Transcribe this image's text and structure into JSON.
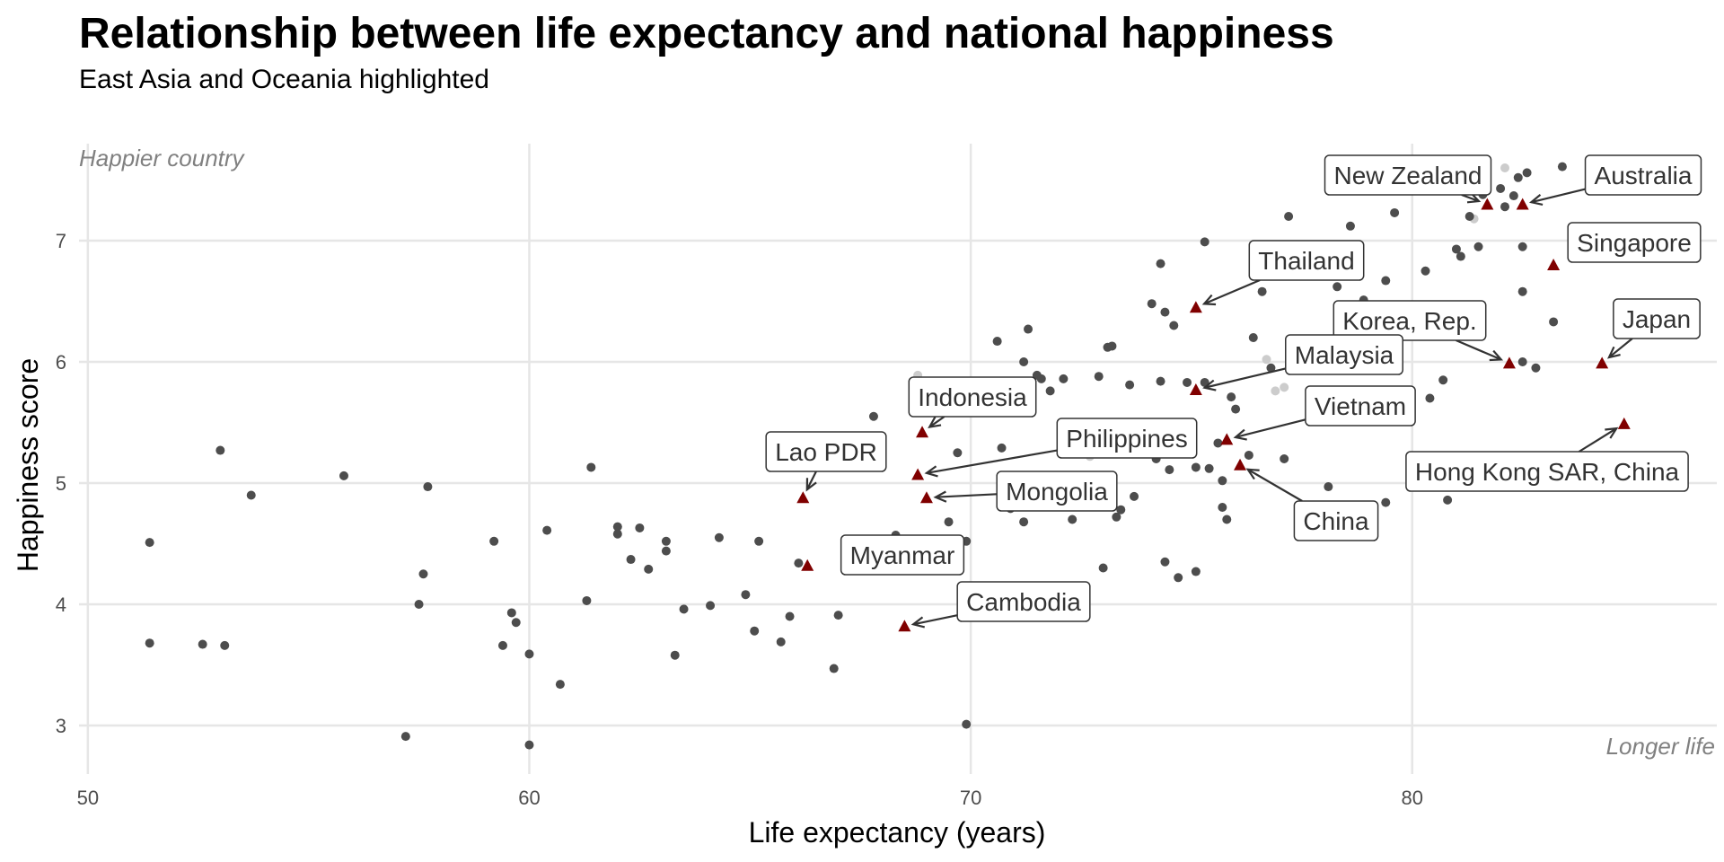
{
  "chart_data": {
    "type": "scatter",
    "title": "Relationship between life expectancy and national happiness",
    "subtitle": "East Asia and Oceania highlighted",
    "xlabel": "Life expectancy (years)",
    "ylabel": "Happiness score",
    "xlim": [
      49.8,
      86.9
    ],
    "ylim": [
      2.6,
      7.8
    ],
    "xticks": [
      50,
      60,
      70,
      80
    ],
    "yticks": [
      3,
      4,
      5,
      6,
      7
    ],
    "grid": true,
    "annotations": {
      "top_left": "Happier country",
      "bottom_right": "Longer life"
    },
    "colors": {
      "other_points": "#4d4d4d",
      "faded_points": "#cccccc",
      "highlight_points": "#800000"
    },
    "other_countries": [
      [
        51.4,
        4.51
      ],
      [
        51.4,
        3.68
      ],
      [
        52.6,
        3.67
      ],
      [
        53.0,
        5.27
      ],
      [
        53.1,
        3.66
      ],
      [
        53.7,
        4.9
      ],
      [
        55.8,
        5.06
      ],
      [
        57.2,
        2.91
      ],
      [
        57.5,
        4.0
      ],
      [
        57.6,
        4.25
      ],
      [
        57.7,
        4.97
      ],
      [
        59.2,
        4.52
      ],
      [
        59.4,
        3.66
      ],
      [
        59.6,
        3.93
      ],
      [
        59.7,
        3.85
      ],
      [
        60.0,
        3.59
      ],
      [
        60.0,
        2.84
      ],
      [
        60.4,
        4.61
      ],
      [
        60.7,
        3.34
      ],
      [
        61.3,
        4.03
      ],
      [
        61.4,
        5.13
      ],
      [
        62.0,
        4.64
      ],
      [
        62.0,
        4.58
      ],
      [
        62.3,
        4.37
      ],
      [
        62.5,
        4.63
      ],
      [
        62.7,
        4.29
      ],
      [
        63.1,
        4.52
      ],
      [
        63.1,
        4.44
      ],
      [
        63.3,
        3.58
      ],
      [
        63.5,
        3.96
      ],
      [
        64.1,
        3.99
      ],
      [
        64.3,
        4.55
      ],
      [
        64.9,
        4.08
      ],
      [
        65.1,
        3.78
      ],
      [
        65.2,
        4.52
      ],
      [
        65.7,
        3.69
      ],
      [
        65.9,
        3.9
      ],
      [
        66.1,
        4.34
      ],
      [
        66.9,
        3.47
      ],
      [
        67.0,
        3.91
      ],
      [
        67.8,
        5.55
      ],
      [
        68.3,
        4.57
      ],
      [
        69.5,
        4.68
      ],
      [
        69.7,
        5.25
      ],
      [
        69.9,
        4.52
      ],
      [
        69.9,
        3.01
      ],
      [
        70.6,
        6.17
      ],
      [
        70.7,
        5.29
      ],
      [
        70.9,
        4.79
      ],
      [
        71.1,
        5.72
      ],
      [
        71.2,
        6.0
      ],
      [
        71.2,
        4.68
      ],
      [
        71.3,
        6.27
      ],
      [
        71.5,
        5.89
      ],
      [
        71.6,
        5.86
      ],
      [
        71.8,
        5.76
      ],
      [
        72.1,
        5.86
      ],
      [
        72.3,
        4.7
      ],
      [
        72.9,
        5.88
      ],
      [
        73.0,
        4.3
      ],
      [
        73.1,
        6.12
      ],
      [
        73.2,
        6.13
      ],
      [
        73.3,
        4.72
      ],
      [
        73.4,
        4.78
      ],
      [
        73.6,
        5.81
      ],
      [
        73.7,
        4.89
      ],
      [
        74.1,
        6.48
      ],
      [
        74.2,
        5.2
      ],
      [
        74.3,
        6.81
      ],
      [
        74.3,
        5.84
      ],
      [
        74.4,
        6.41
      ],
      [
        74.4,
        4.35
      ],
      [
        74.5,
        5.11
      ],
      [
        74.6,
        6.3
      ],
      [
        74.7,
        4.22
      ],
      [
        74.9,
        5.83
      ],
      [
        75.1,
        5.13
      ],
      [
        75.1,
        4.27
      ],
      [
        75.3,
        5.83
      ],
      [
        75.3,
        6.99
      ],
      [
        75.4,
        5.12
      ],
      [
        75.6,
        5.33
      ],
      [
        75.7,
        5.02
      ],
      [
        75.7,
        4.8
      ],
      [
        75.8,
        4.7
      ],
      [
        75.9,
        5.71
      ],
      [
        76.0,
        5.61
      ],
      [
        76.3,
        5.23
      ],
      [
        76.4,
        6.2
      ],
      [
        76.6,
        6.58
      ],
      [
        76.8,
        5.95
      ],
      [
        77.0,
        6.88
      ],
      [
        77.1,
        5.2
      ],
      [
        77.2,
        7.2
      ],
      [
        77.7,
        6.0
      ],
      [
        77.9,
        6.01
      ],
      [
        78.1,
        4.97
      ],
      [
        78.3,
        6.62
      ],
      [
        78.6,
        7.12
      ],
      [
        78.9,
        6.51
      ],
      [
        79.4,
        6.67
      ],
      [
        79.4,
        4.84
      ],
      [
        79.6,
        7.23
      ],
      [
        80.3,
        6.75
      ],
      [
        80.4,
        5.7
      ],
      [
        80.7,
        5.85
      ],
      [
        80.8,
        4.86
      ],
      [
        81.0,
        6.93
      ],
      [
        81.1,
        6.87
      ],
      [
        81.3,
        7.2
      ],
      [
        81.5,
        6.95
      ],
      [
        81.6,
        7.4
      ],
      [
        81.6,
        7.38
      ],
      [
        82.0,
        7.43
      ],
      [
        82.1,
        7.28
      ],
      [
        82.3,
        7.37
      ],
      [
        82.4,
        7.52
      ],
      [
        82.5,
        6.95
      ],
      [
        82.5,
        6.58
      ],
      [
        82.5,
        6.0
      ],
      [
        82.6,
        7.56
      ],
      [
        82.8,
        5.95
      ],
      [
        83.2,
        6.33
      ],
      [
        83.4,
        7.61
      ]
    ],
    "faded_countries": [
      [
        68.8,
        5.89
      ],
      [
        72.7,
        5.22
      ],
      [
        74.3,
        5.48
      ],
      [
        76.6,
        6.9
      ],
      [
        76.7,
        6.02
      ],
      [
        76.9,
        5.76
      ],
      [
        77.1,
        5.79
      ],
      [
        78.0,
        6.8
      ],
      [
        80.5,
        7.56
      ],
      [
        81.4,
        7.18
      ],
      [
        82.1,
        7.6
      ]
    ],
    "highlighted_countries": [
      {
        "name": "New Zealand",
        "x": 81.7,
        "y": 7.3
      },
      {
        "name": "Australia",
        "x": 82.5,
        "y": 7.3
      },
      {
        "name": "Singapore",
        "x": 83.2,
        "y": 6.8
      },
      {
        "name": "Thailand",
        "x": 75.1,
        "y": 6.45
      },
      {
        "name": "Korea, Rep.",
        "x": 82.2,
        "y": 5.99
      },
      {
        "name": "Japan",
        "x": 84.3,
        "y": 5.99
      },
      {
        "name": "Malaysia",
        "x": 75.1,
        "y": 5.77
      },
      {
        "name": "Indonesia",
        "x": 68.9,
        "y": 5.42
      },
      {
        "name": "Vietnam",
        "x": 75.8,
        "y": 5.36
      },
      {
        "name": "Hong Kong SAR, China",
        "x": 84.8,
        "y": 5.49
      },
      {
        "name": "Philippines",
        "x": 68.8,
        "y": 5.07
      },
      {
        "name": "Lao PDR",
        "x": 66.2,
        "y": 4.88
      },
      {
        "name": "Mongolia",
        "x": 69.0,
        "y": 4.88
      },
      {
        "name": "China",
        "x": 76.1,
        "y": 5.15
      },
      {
        "name": "Myanmar",
        "x": 66.3,
        "y": 4.32
      },
      {
        "name": "Cambodia",
        "x": 68.5,
        "y": 3.82
      }
    ]
  }
}
